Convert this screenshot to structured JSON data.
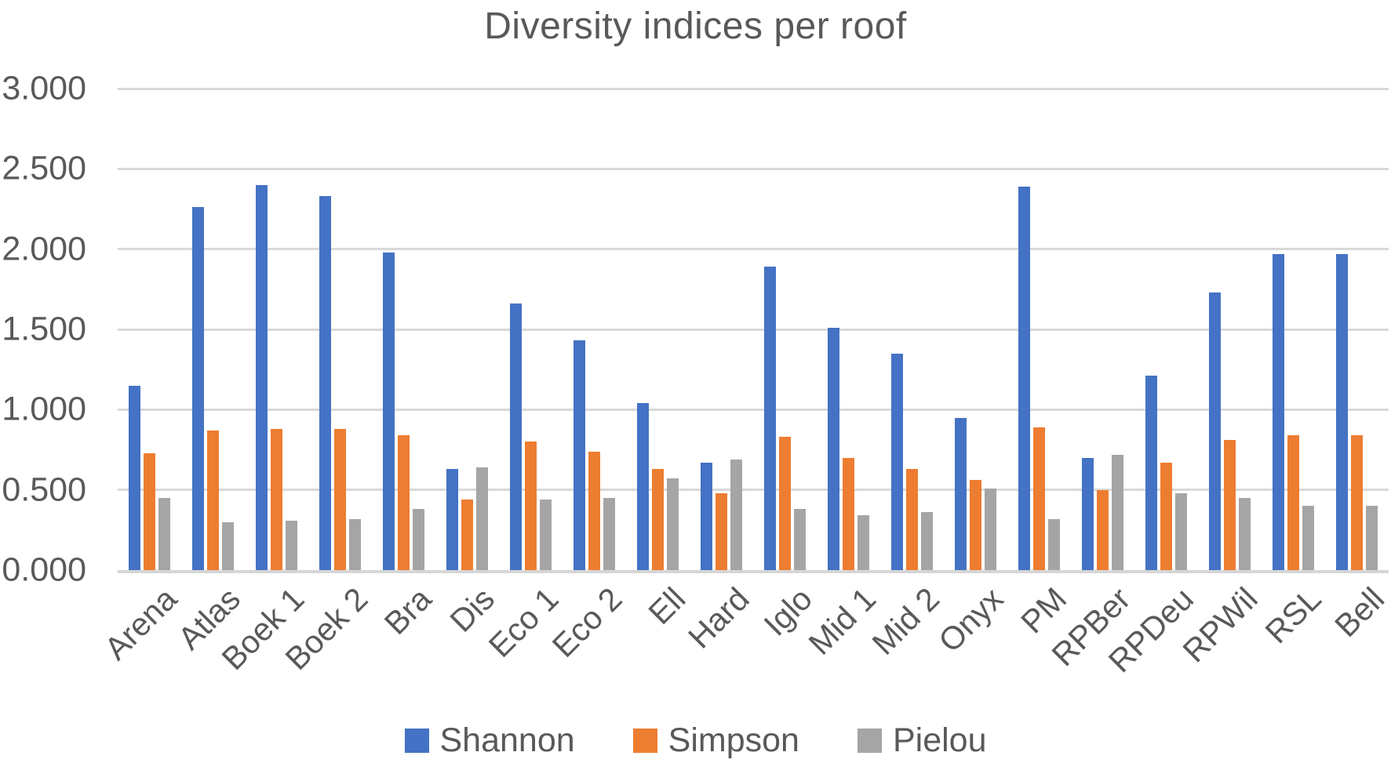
{
  "chart_data": {
    "type": "bar",
    "title": "Diversity indices per roof",
    "categories": [
      "Arena",
      "Atlas",
      "Boek 1",
      "Boek 2",
      "Bra",
      "Dis",
      "Eco 1",
      "Eco 2",
      "Ell",
      "Hard",
      "Iglo",
      "Mid 1",
      "Mid 2",
      "Onyx",
      "PM",
      "RPBer",
      "RPDeu",
      "RPWil",
      "RSL",
      "Bell"
    ],
    "series": [
      {
        "name": "Shannon",
        "color": "#4472C4",
        "values": [
          1.15,
          2.26,
          2.4,
          2.33,
          1.98,
          0.63,
          1.66,
          1.43,
          1.04,
          0.67,
          1.89,
          1.51,
          1.35,
          0.95,
          2.39,
          0.7,
          1.21,
          1.73,
          1.97,
          1.97
        ]
      },
      {
        "name": "Simpson",
        "color": "#ED7D31",
        "values": [
          0.73,
          0.87,
          0.88,
          0.88,
          0.84,
          0.44,
          0.8,
          0.74,
          0.63,
          0.48,
          0.83,
          0.7,
          0.63,
          0.56,
          0.89,
          0.5,
          0.67,
          0.81,
          0.84,
          0.84
        ]
      },
      {
        "name": "Pielou",
        "color": "#A5A5A5",
        "values": [
          0.45,
          0.3,
          0.31,
          0.32,
          0.38,
          0.64,
          0.44,
          0.45,
          0.57,
          0.69,
          0.38,
          0.34,
          0.36,
          0.51,
          0.32,
          0.72,
          0.48,
          0.45,
          0.4,
          0.4
        ]
      }
    ],
    "y_axis": {
      "min": 0,
      "max": 3,
      "tick_interval": 0.5,
      "tick_labels": [
        "0.000",
        "0.500",
        "1.000",
        "1.500",
        "2.000",
        "2.500",
        "3.000"
      ]
    },
    "x_label_rotation_deg": -45,
    "legend_position": "bottom",
    "grid": true,
    "colors": {
      "text": "#595959",
      "gridline": "#D9D9D9",
      "axis_line": "#D6D6D6",
      "background": "#FFFFFF"
    }
  }
}
